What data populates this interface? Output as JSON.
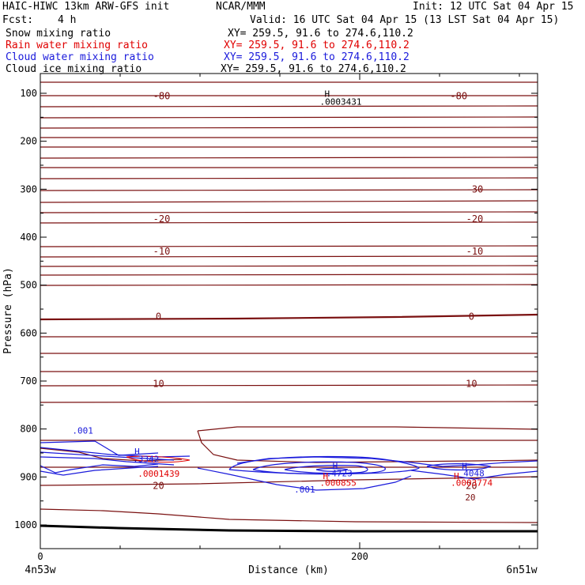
{
  "header": {
    "title_left": "HAIC-HIWC 13km ARW-GFS init",
    "title_center": "NCAR/MMM",
    "init": "Init: 12 UTC Sat 04 Apr 15",
    "fcst_label": "Fcst:",
    "fcst_value": "4 h",
    "valid": "Valid: 16 UTC Sat 04 Apr 15 (13 LST Sat 04 Apr 15)"
  },
  "fields": [
    {
      "name": "Snow mixing ratio",
      "xy": "XY= 259.5, 91.6 to 274.6,110.2",
      "color": "#000000"
    },
    {
      "name": "Rain water mixing ratio",
      "xy": "XY= 259.5, 91.6 to 274.6,110.2",
      "color": "#e00000"
    },
    {
      "name": "Cloud water mixing ratio",
      "xy": "XY= 259.5, 91.6 to 274.6,110.2",
      "color": "#1a1adb"
    },
    {
      "name": "Cloud ice mixing ratio",
      "xy": "XY= 259.5, 91.6 to 274.6,110.2",
      "color": "#000000"
    }
  ],
  "chart_data": {
    "type": "contour",
    "ylabel": "Pressure (hPa)",
    "xlabel": "Distance (km)",
    "y_ticks": [
      100,
      200,
      300,
      400,
      500,
      600,
      700,
      800,
      900,
      1000
    ],
    "x_ticks": [
      0,
      200
    ],
    "xlim": [
      0,
      310
    ],
    "ylim": [
      1050,
      50
    ],
    "x_start_label": "4n53w",
    "x_end_label": "6n51w",
    "temperature_contour_color": "#7a1010",
    "cloud_water_color": "#1a1adb",
    "rain_color": "#e00000",
    "temperature_levels": [
      {
        "label": "-80",
        "p": 106,
        "positions_km": [
          76,
          262
        ]
      },
      {
        "label": "-30",
        "p": 300,
        "positions_km": [
          272
        ]
      },
      {
        "label": "-20",
        "p": 362,
        "positions_km": [
          76,
          272
        ]
      },
      {
        "label": "-10",
        "p": 430,
        "positions_km": [
          76,
          272
        ]
      },
      {
        "label": "0",
        "p": 566,
        "positions_km": [
          74,
          270
        ]
      },
      {
        "label": "10",
        "p": 706,
        "positions_km": [
          74,
          270
        ]
      },
      {
        "label": "20",
        "p": 918,
        "positions_km": [
          74,
          270
        ]
      }
    ],
    "annotations": [
      {
        "text": "H",
        "x_km": 178,
        "p": 101,
        "color": "#000000"
      },
      {
        "text": ".0003431",
        "x_km": 175,
        "p": 117,
        "color": "#000000"
      },
      {
        "text": ".001",
        "x_km": 20,
        "p": 803,
        "color": "#1a1adb"
      },
      {
        "text": "H",
        "x_km": 59,
        "p": 847,
        "color": "#1a1adb"
      },
      {
        "text": ".3342",
        "x_km": 58,
        "p": 862,
        "color": "#1a1adb"
      },
      {
        "text": ".0001439",
        "x_km": 61,
        "p": 893,
        "color": "#e00000"
      },
      {
        "text": "H",
        "x_km": 183,
        "p": 877,
        "color": "#1a1adb"
      },
      {
        "text": ".4723",
        "x_km": 179,
        "p": 892,
        "color": "#1a1adb"
      },
      {
        "text": "H",
        "x_km": 177,
        "p": 898,
        "color": "#e00000"
      },
      {
        "text": ".000855",
        "x_km": 175,
        "p": 912,
        "color": "#e00000"
      },
      {
        "text": ".001",
        "x_km": 159,
        "p": 926,
        "color": "#1a1adb"
      },
      {
        "text": "H",
        "x_km": 264,
        "p": 877,
        "color": "#1a1adb"
      },
      {
        "text": "4048",
        "x_km": 265,
        "p": 892,
        "color": "#1a1adb"
      },
      {
        "text": "H",
        "x_km": 259,
        "p": 898,
        "color": "#e00000"
      },
      {
        "text": ".0003774",
        "x_km": 257,
        "p": 912,
        "color": "#e00000"
      },
      {
        "text": "20",
        "x_km": 266,
        "p": 942,
        "color": "#7a1010"
      }
    ]
  }
}
